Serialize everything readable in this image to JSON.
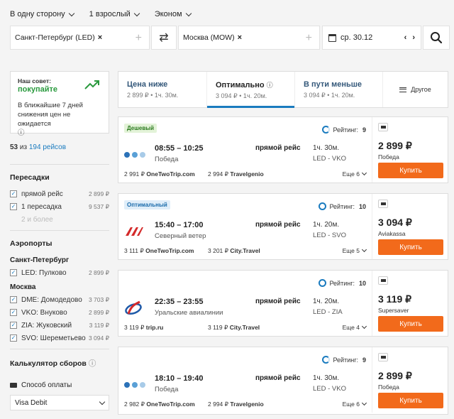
{
  "search": {
    "options": [
      "В одну сторону",
      "1 взрослый",
      "Эконом"
    ],
    "from": "Санкт-Петербург (LED)",
    "to": "Москва (MOW)",
    "date": "ср. 30.12",
    "remove": "×",
    "add": "+",
    "swap": "⇄",
    "prev": "‹",
    "next": "›"
  },
  "tip": {
    "heading": "Наш совет:",
    "action": "покупайте",
    "text": "В ближайшие 7 дней снижения цен не ожидается",
    "info": "ⓘ"
  },
  "results": {
    "shown": "53",
    "of": "из",
    "total_link": "194 рейсов"
  },
  "filters": {
    "transfers": {
      "title": "Пересадки",
      "items": [
        {
          "label": "прямой рейс",
          "price": "2 899 ₽",
          "checked": true
        },
        {
          "label": "1 пересадка",
          "price": "9 537 ₽",
          "checked": true
        }
      ],
      "disabled": "2 и более"
    },
    "airports": {
      "title": "Аэропорты",
      "spb": "Санкт-Петербург",
      "spb_items": [
        {
          "label": "LED: Пулково",
          "price": "2 899 ₽"
        }
      ],
      "msk": "Москва",
      "msk_items": [
        {
          "label": "DME: Домодедово",
          "price": "3 703 ₽"
        },
        {
          "label": "VKO: Внуково",
          "price": "2 899 ₽"
        },
        {
          "label": "ZIA: Жуковский",
          "price": "3 119 ₽"
        },
        {
          "label": "SVO: Шереметьево",
          "price": "3 094 ₽"
        }
      ]
    },
    "calculator": {
      "title": "Калькулятор сборов",
      "pay_label": "Способ оплаты",
      "pay_value": "Visa Debit"
    }
  },
  "tabs": [
    {
      "title": "Цена ниже",
      "sub": "2 899 ₽ • 1ч. 30м.",
      "active": false
    },
    {
      "title": "Оптимально",
      "sub": "3 094 ₽ • 1ч. 20м.",
      "active": true,
      "info": "ⓘ"
    },
    {
      "title": "В пути меньше",
      "sub": "3 094 ₽ • 1ч. 20м.",
      "active": false
    }
  ],
  "other_tab": "Другое",
  "tickets": [
    {
      "badge": "Дешевый",
      "badge_color": "green",
      "rating_label": "Рейтинг:",
      "rating": "9",
      "times": "08:55 – 10:25",
      "airline": "Победа",
      "logo": "pobeda",
      "type": "прямой рейс",
      "duration": "1ч. 30м.",
      "route": "LED - VKO",
      "agent1_price": "2 991 ₽",
      "agent1": "OneTwoTrip.com",
      "agent2_price": "2 994 ₽",
      "agent2": "Travelgenio",
      "more": "Еще 6",
      "price": "2 899 ₽",
      "seller": "Победа",
      "buy": "Купить"
    },
    {
      "badge": "Оптимальный",
      "badge_color": "blue",
      "rating_label": "Рейтинг:",
      "rating": "10",
      "times": "15:40 – 17:00",
      "airline": "Северный ветер",
      "logo": "nordwind",
      "type": "прямой рейс",
      "duration": "1ч. 20м.",
      "route": "LED - SVO",
      "agent1_price": "3 111 ₽",
      "agent1": "OneTwoTrip.com",
      "agent2_price": "3 201 ₽",
      "agent2": "City.Travel",
      "more": "Еще 5",
      "price": "3 094 ₽",
      "seller": "Aviakassa",
      "buy": "Купить"
    },
    {
      "badge": "",
      "badge_color": "",
      "rating_label": "Рейтинг:",
      "rating": "10",
      "times": "22:35 – 23:55",
      "airline": "Уральские авиалинии",
      "logo": "ural",
      "type": "прямой рейс",
      "duration": "1ч. 20м.",
      "route": "LED - ZIA",
      "agent1_price": "3 119 ₽",
      "agent1": "trip.ru",
      "agent2_price": "3 119 ₽",
      "agent2": "City.Travel",
      "more": "Еще 4",
      "price": "3 119 ₽",
      "seller": "Supersaver",
      "buy": "Купить"
    },
    {
      "badge": "",
      "badge_color": "",
      "rating_label": "Рейтинг:",
      "rating": "9",
      "times": "18:10 – 19:40",
      "airline": "Победа",
      "logo": "pobeda",
      "type": "прямой рейс",
      "duration": "1ч. 30м.",
      "route": "LED - VKO",
      "agent1_price": "2 982 ₽",
      "agent1": "OneTwoTrip.com",
      "agent2_price": "2 994 ₽",
      "agent2": "Travelgenio",
      "more": "Еще 6",
      "price": "2 899 ₽",
      "seller": "Победа",
      "buy": "Купить"
    }
  ]
}
